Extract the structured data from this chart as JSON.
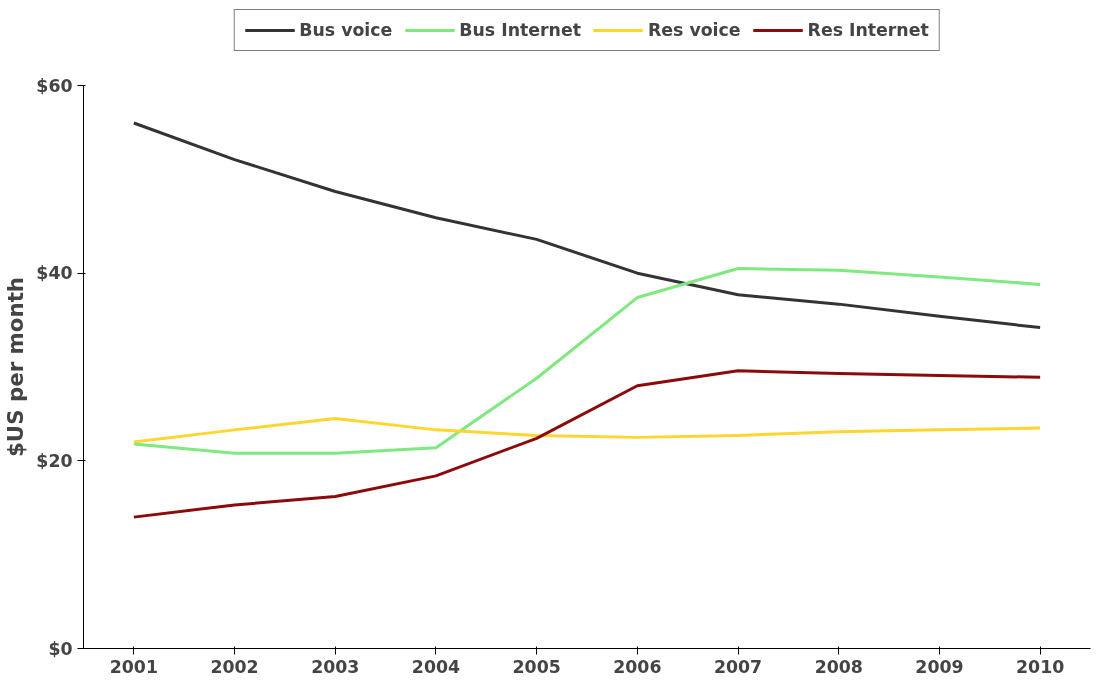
{
  "chart_data": {
    "type": "line",
    "ylabel": "$US per month",
    "categories": [
      "2001",
      "2002",
      "2003",
      "2004",
      "2005",
      "2006",
      "2007",
      "2008",
      "2009",
      "2010"
    ],
    "series": [
      {
        "name": "Bus voice",
        "color": "#333333",
        "values": [
          56,
          52.1,
          48.7,
          45.9,
          43.6,
          40,
          37.7,
          36.7,
          35.4,
          34.2
        ]
      },
      {
        "name": "Bus Internet",
        "color": "#80e880",
        "values": [
          21.8,
          20.8,
          20.8,
          21.4,
          28.8,
          37.4,
          40.5,
          40.3,
          39.6,
          38.8
        ]
      },
      {
        "name": "Res voice",
        "color": "#ffd530",
        "values": [
          22,
          23.3,
          24.5,
          23.3,
          22.7,
          22.5,
          22.7,
          23.1,
          23.3,
          23.5
        ]
      },
      {
        "name": "Res Internet",
        "color": "#8b0a0a",
        "values": [
          14,
          15.3,
          16.2,
          18.4,
          22.4,
          28,
          29.6,
          29.3,
          29.1,
          28.9
        ]
      }
    ],
    "ylim": [
      0,
      60
    ],
    "yticks": [
      {
        "value": 0,
        "label": "$0"
      },
      {
        "value": 20,
        "label": "$20"
      },
      {
        "value": 40,
        "label": "$40"
      },
      {
        "value": 60,
        "label": "$60"
      }
    ],
    "grid": false,
    "legend": "top",
    "marker": "none",
    "line_style": "solid"
  }
}
